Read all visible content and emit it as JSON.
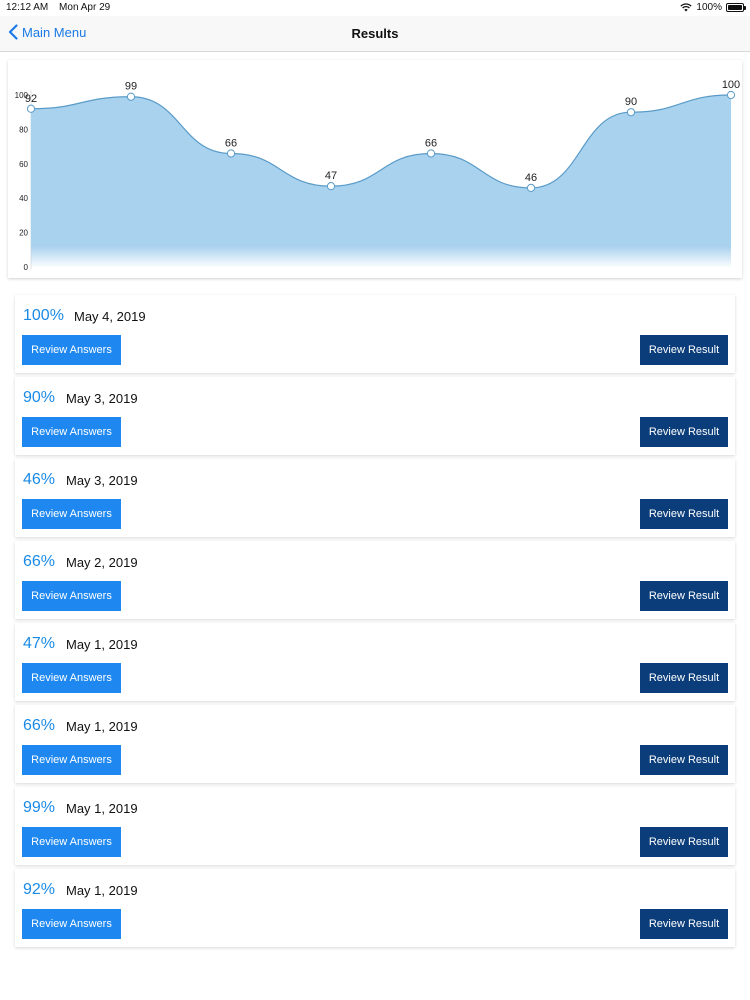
{
  "status_bar": {
    "time": "12:12 AM",
    "date": "Mon Apr 29",
    "battery": "100%",
    "battery_level": 1.0
  },
  "nav": {
    "back_label": "Main Menu",
    "title": "Results"
  },
  "colors": {
    "accent": "#1a7ae6",
    "score": "#1a8ae6",
    "answers_button": "#1e88f0",
    "result_button": "#0a3d7a",
    "area_fill": "#a9d2ee",
    "line": "#5a9bc8"
  },
  "chart_data": {
    "type": "area",
    "values": [
      92,
      99,
      66,
      47,
      66,
      46,
      90,
      100
    ],
    "value_labels": [
      "92",
      "99",
      "66",
      "47",
      "66",
      "46",
      "90",
      "100"
    ],
    "y_ticks": [
      "0",
      "20",
      "40",
      "60",
      "80",
      "100"
    ],
    "ylim": [
      0,
      100
    ],
    "smooth": true,
    "point_markers": true,
    "legend": "none"
  },
  "results": [
    {
      "score": "100%",
      "date": "May 4, 2019",
      "answers_label": "Review Answers",
      "result_label": "Review Result"
    },
    {
      "score": "90%",
      "date": "May 3, 2019",
      "answers_label": "Review Answers",
      "result_label": "Review Result"
    },
    {
      "score": "46%",
      "date": "May 3, 2019",
      "answers_label": "Review Answers",
      "result_label": "Review Result"
    },
    {
      "score": "66%",
      "date": "May 2, 2019",
      "answers_label": "Review Answers",
      "result_label": "Review Result"
    },
    {
      "score": "47%",
      "date": "May 1, 2019",
      "answers_label": "Review Answers",
      "result_label": "Review Result"
    },
    {
      "score": "66%",
      "date": "May 1, 2019",
      "answers_label": "Review Answers",
      "result_label": "Review Result"
    },
    {
      "score": "99%",
      "date": "May 1, 2019",
      "answers_label": "Review Answers",
      "result_label": "Review Result"
    },
    {
      "score": "92%",
      "date": "May 1, 2019",
      "answers_label": "Review Answers",
      "result_label": "Review Result"
    }
  ]
}
